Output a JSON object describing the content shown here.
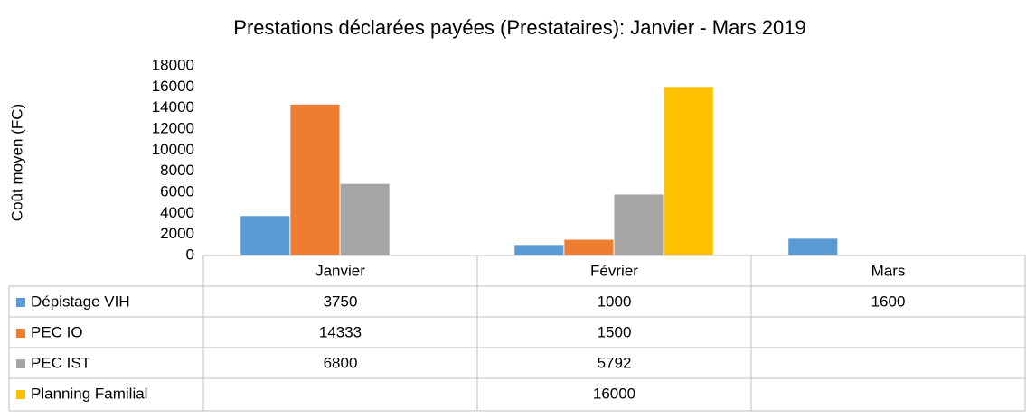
{
  "chart_data": {
    "type": "bar",
    "title": "Prestations déclarées payées (Prestataires): Janvier - Mars 2019",
    "y_label": "Coût moyen (FC)",
    "categories": [
      "Janvier",
      "Février",
      "Mars"
    ],
    "series": [
      {
        "name": "Dépistage VIH",
        "color": "#5b9bd5",
        "values": [
          3750,
          1000,
          1600
        ]
      },
      {
        "name": "PEC IO",
        "color": "#ed7d31",
        "values": [
          14333,
          1500,
          null
        ]
      },
      {
        "name": "PEC IST",
        "color": "#a5a5a5",
        "values": [
          6800,
          5792,
          null
        ]
      },
      {
        "name": "Planning Familial",
        "color": "#ffc000",
        "values": [
          null,
          16000,
          null
        ]
      }
    ],
    "ylim": [
      0,
      18000
    ],
    "yticks": [
      0,
      2000,
      4000,
      6000,
      8000,
      10000,
      12000,
      14000,
      16000,
      18000
    ],
    "grid": false,
    "data_table": true
  }
}
